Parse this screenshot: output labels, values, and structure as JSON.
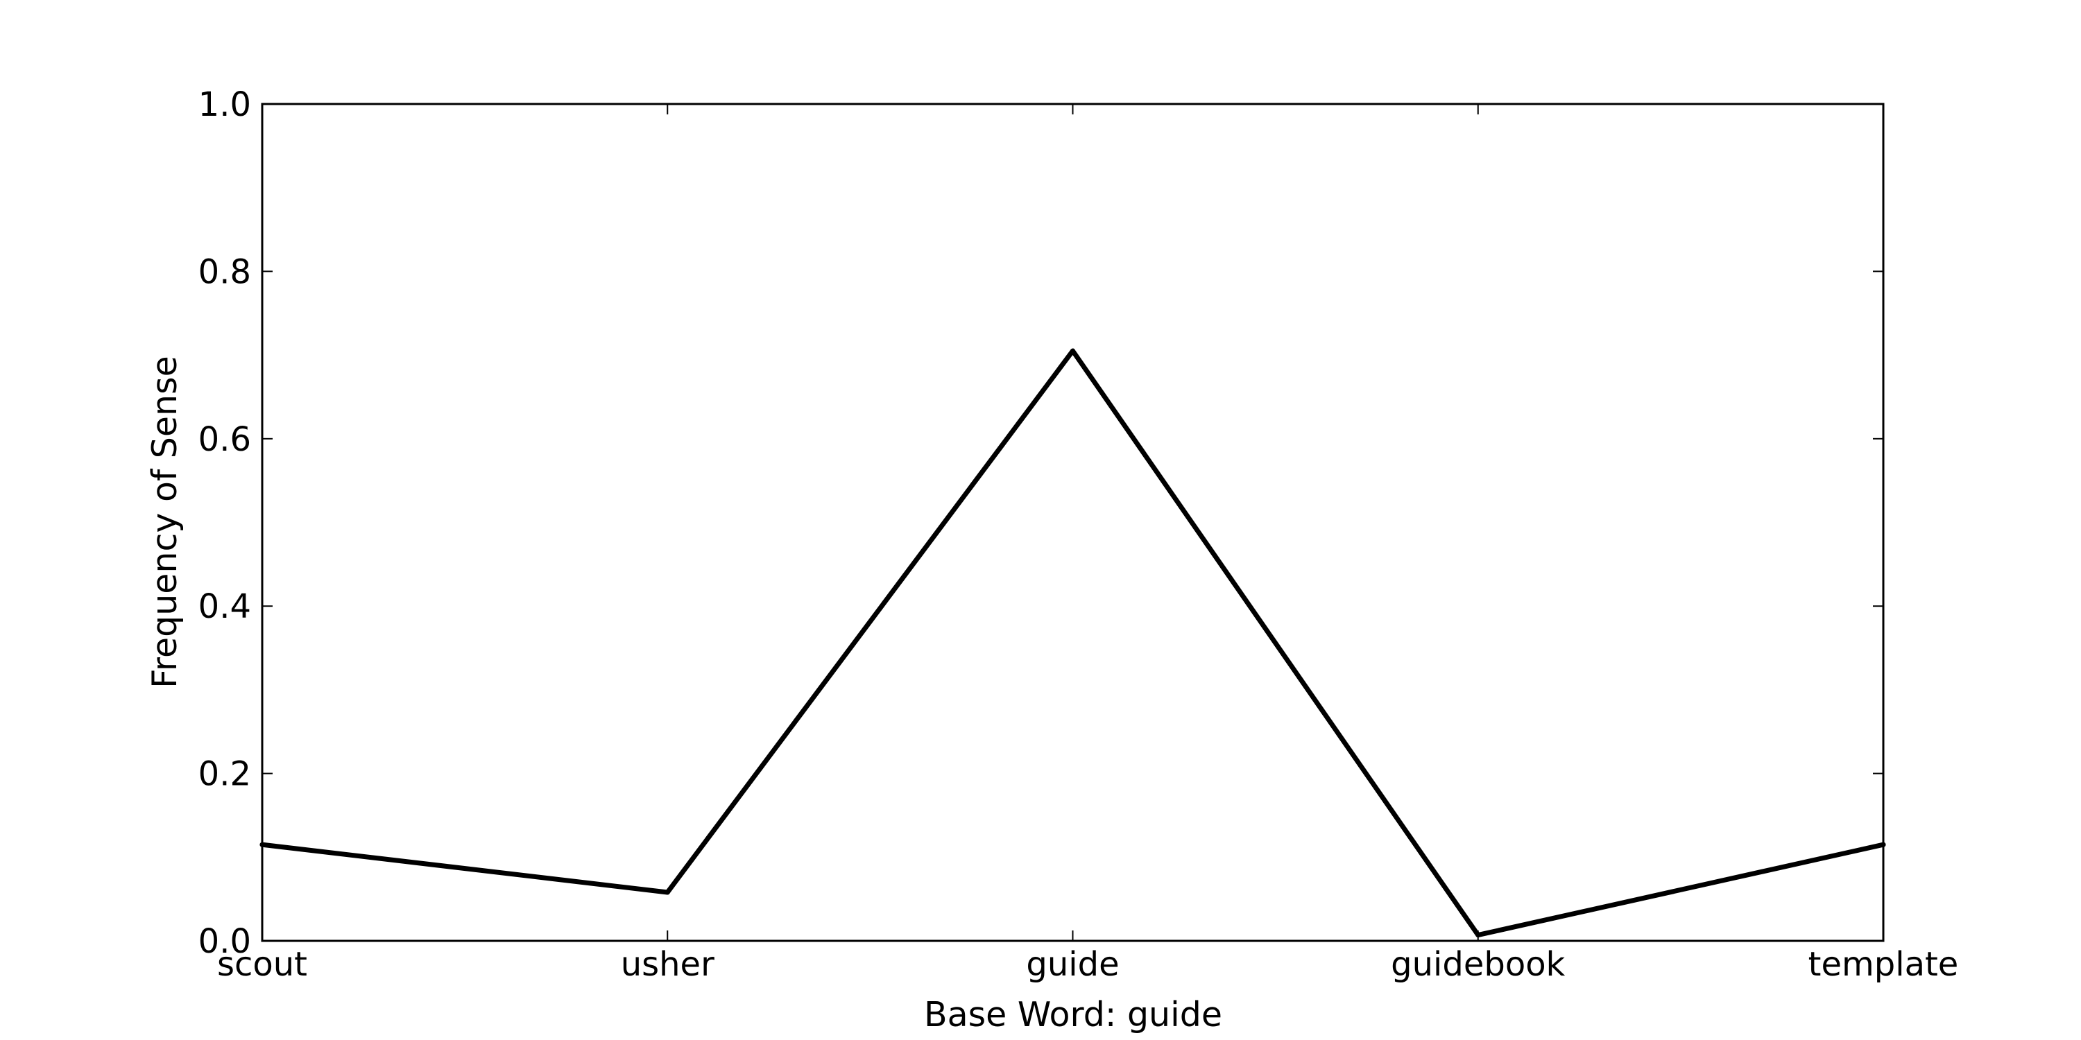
{
  "chart_data": {
    "type": "line",
    "title": "",
    "xlabel": "Base Word: guide",
    "ylabel": "Frequency of Sense",
    "categories": [
      "scout",
      "usher",
      "guide",
      "guidebook",
      "template"
    ],
    "series": [
      {
        "values": [
          0.115,
          0.058,
          0.705,
          0.007,
          0.115
        ]
      }
    ],
    "ylim": [
      0.0,
      1.0
    ],
    "yticks": [
      "0.0",
      "0.2",
      "0.4",
      "0.6",
      "0.8",
      "1.0"
    ],
    "grid": false,
    "line_color": "#000000"
  }
}
